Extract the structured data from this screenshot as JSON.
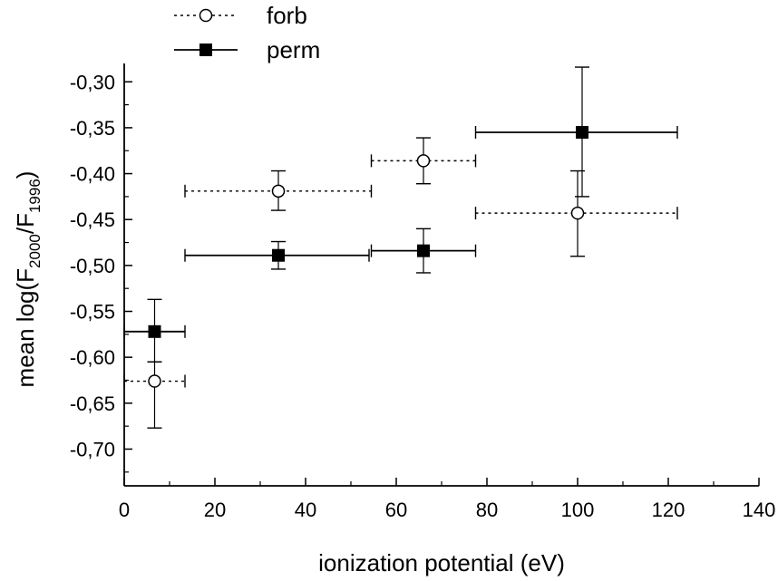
{
  "chart_data": {
    "type": "scatter",
    "title": "",
    "xlabel": "ionization potential (eV)",
    "ylabel": {
      "prefix": "mean log(F",
      "sub1": "2000",
      "mid": "/F",
      "sub2": "1996",
      "suffix": ")"
    },
    "xlim": [
      0,
      140
    ],
    "ylim": [
      -0.74,
      -0.28
    ],
    "x_ticks": [
      0,
      20,
      40,
      60,
      80,
      100,
      120,
      140
    ],
    "x_tick_labels": [
      "0",
      "20",
      "40",
      "60",
      "80",
      "100",
      "120",
      "140"
    ],
    "y_ticks": [
      -0.7,
      -0.65,
      -0.6,
      -0.55,
      -0.5,
      -0.45,
      -0.4,
      -0.35,
      -0.3
    ],
    "y_tick_labels": [
      "-0,70",
      "-0,65",
      "-0,60",
      "-0,55",
      "-0,50",
      "-0,45",
      "-0,40",
      "-0,35",
      "-0,30"
    ],
    "grid": false,
    "legend_position": "top-left, above plot",
    "series": [
      {
        "name": "forb",
        "marker": "open-circle",
        "line_style": "dotted",
        "color": "#000000",
        "points": [
          {
            "x": 6.7,
            "y": -0.626,
            "xmin": 0,
            "xmax": 13.4,
            "ymin": -0.677,
            "ymax": -0.605
          },
          {
            "x": 34.0,
            "y": -0.419,
            "xmin": 13.4,
            "xmax": 54.5,
            "ymin": -0.44,
            "ymax": -0.397
          },
          {
            "x": 66.0,
            "y": -0.386,
            "xmin": 54.5,
            "xmax": 77.5,
            "ymin": -0.411,
            "ymax": -0.361
          },
          {
            "x": 100.0,
            "y": -0.443,
            "xmin": 77.5,
            "xmax": 122.0,
            "ymin": -0.49,
            "ymax": -0.397
          }
        ]
      },
      {
        "name": "perm",
        "marker": "filled-square",
        "line_style": "solid",
        "color": "#000000",
        "points": [
          {
            "x": 6.7,
            "y": -0.572,
            "xmin": 0,
            "xmax": 13.4,
            "ymin": -0.605,
            "ymax": -0.537
          },
          {
            "x": 34.0,
            "y": -0.489,
            "xmin": 13.4,
            "xmax": 54.0,
            "ymin": -0.504,
            "ymax": -0.474
          },
          {
            "x": 66.0,
            "y": -0.484,
            "xmin": 54.5,
            "xmax": 77.5,
            "ymin": -0.508,
            "ymax": -0.46
          },
          {
            "x": 101.0,
            "y": -0.355,
            "xmin": 77.5,
            "xmax": 122.0,
            "ymin": -0.425,
            "ymax": -0.284
          }
        ]
      }
    ]
  }
}
